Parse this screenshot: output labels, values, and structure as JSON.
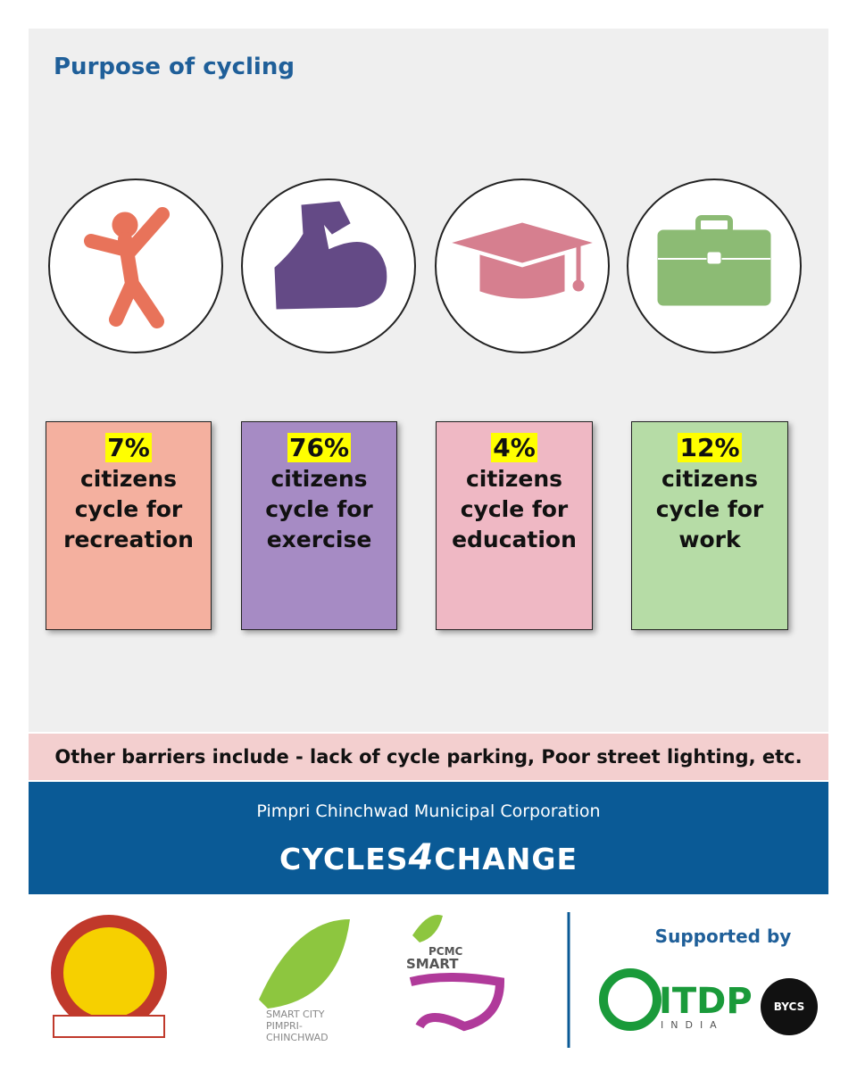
{
  "title": "Purpose of cycling",
  "cards": [
    {
      "percent": "7%",
      "lines": [
        "citizens",
        "cycle for",
        "recreation"
      ],
      "color": "#f4b09f",
      "icon_color": "#e8735a"
    },
    {
      "percent": "76%",
      "lines": [
        "citizens",
        "cycle for",
        "exercise"
      ],
      "color": "#a68bc4",
      "icon_color": "#644a86"
    },
    {
      "percent": "4%",
      "lines": [
        "citizens",
        "cycle for",
        "education"
      ],
      "color": "#efb8c4",
      "icon_color": "#d67f8f"
    },
    {
      "percent": "12%",
      "lines": [
        "citizens",
        "cycle for",
        "work"
      ],
      "color": "#b6dca6",
      "icon_color": "#8cbb74"
    }
  ],
  "note": "Other barriers include - lack of cycle parking, Poor street lighting, etc.",
  "banner": {
    "organization": "Pimpri Chinchwad Municipal Corporation",
    "brand_left": "CYCLES",
    "brand_mid": "4",
    "brand_right": "CHANGE"
  },
  "logos": {
    "smart_city": [
      "SMART CITY",
      "PIMPRI-",
      "CHINCHWAD"
    ],
    "pcmc": "PCMC",
    "smart": "SMART",
    "supported_by": "Supported by",
    "itdp": "ITDP",
    "india": "INDIA",
    "bycs": "BYCS"
  }
}
